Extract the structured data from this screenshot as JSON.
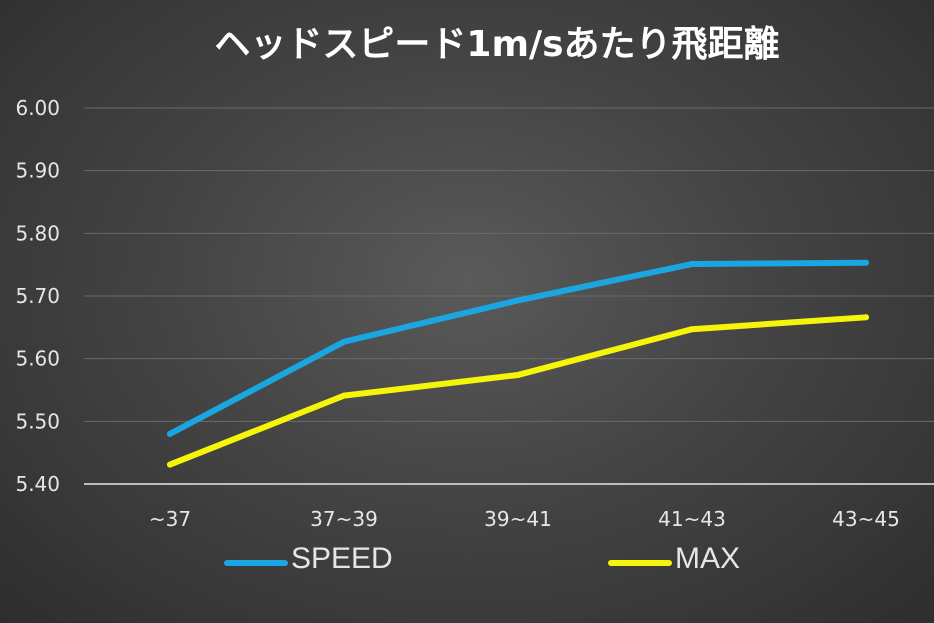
{
  "chart_data": {
    "type": "line",
    "title": "ヘッドスピード1m/sあたり飛距離",
    "categories": [
      "~37",
      "37~39",
      "39~41",
      "41~43",
      "43~45"
    ],
    "series": [
      {
        "name": "SPEED",
        "color": "#1aa7e1",
        "values": [
          5.48,
          5.627,
          5.693,
          5.751,
          5.753
        ]
      },
      {
        "name": "MAX",
        "color": "#f5f50a",
        "values": [
          5.431,
          5.541,
          5.574,
          5.647,
          5.666
        ]
      }
    ],
    "ylim": [
      5.4,
      6.0
    ],
    "yticks": [
      "5.40",
      "5.50",
      "5.60",
      "5.70",
      "5.80",
      "5.90",
      "6.00"
    ],
    "grid": true,
    "legend_position": "bottom"
  }
}
